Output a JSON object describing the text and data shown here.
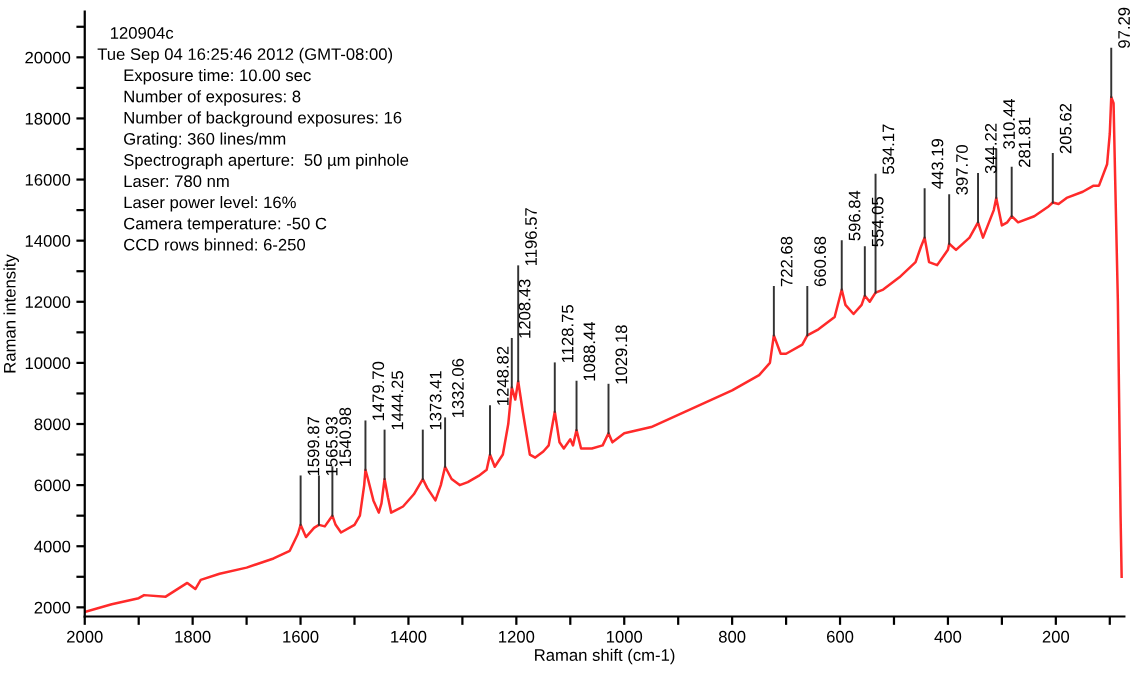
{
  "chart_data": {
    "type": "line",
    "xlabel": "Raman shift (cm-1)",
    "ylabel": "Raman intensity",
    "x": [
      2000,
      1950,
      1900,
      1890,
      1850,
      1810,
      1795,
      1785,
      1750,
      1700,
      1650,
      1620,
      1605,
      1599.87,
      1590,
      1575,
      1565.93,
      1555,
      1545,
      1540.98,
      1535,
      1525,
      1500,
      1490,
      1482,
      1479.7,
      1475,
      1465,
      1455,
      1450,
      1444.25,
      1438,
      1432,
      1410,
      1390,
      1373.41,
      1365,
      1350,
      1340,
      1332.06,
      1320,
      1305,
      1290,
      1270,
      1255,
      1248.82,
      1240,
      1225,
      1215,
      1208.43,
      1202,
      1196.57,
      1188,
      1175,
      1165,
      1150,
      1140,
      1128.75,
      1120,
      1112,
      1100,
      1095,
      1088.44,
      1080,
      1060,
      1040,
      1029.18,
      1022,
      1000,
      950,
      900,
      850,
      800,
      750,
      730,
      722.68,
      710,
      700,
      670,
      660.68,
      640,
      610,
      596.84,
      590,
      575,
      560,
      554.05,
      545,
      534.17,
      520,
      490,
      460,
      450,
      443.19,
      435,
      420,
      400,
      397.7,
      385,
      360,
      344.22,
      335,
      315,
      310.44,
      300,
      290,
      281.81,
      270,
      240,
      215,
      205.62,
      195,
      180,
      150,
      130,
      120,
      105,
      100,
      97.29,
      93,
      90,
      85,
      80,
      78
    ],
    "series": [
      {
        "color": "#ff2a2a",
        "values": [
          1850,
          2100,
          2300,
          2400,
          2350,
          2800,
          2600,
          2900,
          3100,
          3300,
          3600,
          3850,
          4400,
          4700,
          4300,
          4600,
          4700,
          4650,
          4900,
          5000,
          4700,
          4450,
          4700,
          5000,
          6000,
          6500,
          6200,
          5500,
          5100,
          5400,
          6200,
          5600,
          5100,
          5300,
          5700,
          6200,
          5900,
          5500,
          6000,
          6600,
          6200,
          6000,
          6100,
          6300,
          6500,
          7000,
          6600,
          7000,
          8000,
          9200,
          8800,
          9400,
          8400,
          7000,
          6900,
          7100,
          7300,
          8400,
          7400,
          7200,
          7500,
          7300,
          7800,
          7200,
          7200,
          7300,
          7700,
          7400,
          7700,
          7900,
          8300,
          8700,
          9100,
          9600,
          10000,
          10900,
          10300,
          10300,
          10600,
          10900,
          11100,
          11500,
          12400,
          11900,
          11600,
          11900,
          12200,
          12000,
          12300,
          12400,
          12800,
          13300,
          13800,
          14100,
          13300,
          13200,
          13700,
          13900,
          13700,
          14100,
          14600,
          14100,
          15000,
          15400,
          14500,
          14600,
          14800,
          14600,
          14800,
          15100,
          15250,
          15200,
          15400,
          15600,
          15800,
          15800,
          16500,
          17500,
          18700,
          18500,
          16000,
          12000,
          5000,
          3000
        ]
      }
    ],
    "xlim": [
      2000,
      73
    ],
    "ylim": [
      1700,
      21500
    ],
    "xticks": [
      2000,
      {
        "value": 1900,
        "label": null
      },
      1800,
      {
        "value": 1700,
        "label": null
      },
      1600,
      {
        "value": 1500,
        "label": null
      },
      1400,
      {
        "value": 1300,
        "label": null
      },
      1200,
      {
        "value": 1100,
        "label": null
      },
      1000,
      {
        "value": 900,
        "label": null
      },
      800,
      {
        "value": 700,
        "label": null
      },
      600,
      {
        "value": 500,
        "label": null
      },
      400,
      {
        "value": 300,
        "label": null
      },
      200,
      {
        "value": 100,
        "label": null
      }
    ],
    "yticks": [
      2000,
      {
        "value": 3000,
        "label": null
      },
      4000,
      {
        "value": 5000,
        "label": null
      },
      6000,
      {
        "value": 7000,
        "label": null
      },
      8000,
      {
        "value": 9000,
        "label": null
      },
      10000,
      {
        "value": 11000,
        "label": null
      },
      12000,
      {
        "value": 13000,
        "label": null
      },
      14000,
      {
        "value": 15000,
        "label": null
      },
      16000,
      {
        "value": 17000,
        "label": null
      },
      18000,
      {
        "value": 19000,
        "label": null
      },
      20000,
      {
        "value": 21000,
        "label": null
      }
    ],
    "grid": false,
    "legend": false,
    "marker": "none",
    "line_style": "solid",
    "annotations": [
      "120904c",
      "Tue Sep 04 16:25:46 2012 (GMT-08:00)",
      "Exposure time: 10.00 sec",
      "Number of exposures: 8",
      "Number of background exposures: 16",
      "Grating: 360 lines/mm",
      "Spectrograph aperture:  50 µm pinhole",
      "Laser: 780 nm",
      "Laser power level: 16%",
      "Camera temperature: -50 C",
      "CCD rows binned: 6-250",
      {
        "text": "1599.87",
        "x": 1599.87,
        "y": 4700
      },
      {
        "text": "1565.93",
        "x": 1565.93,
        "y": 4700
      },
      {
        "text": "1540.98",
        "x": 1540.98,
        "y": 5000
      },
      {
        "text": "1479.70",
        "x": 1479.7,
        "y": 6500
      },
      {
        "text": "1444.25",
        "x": 1444.25,
        "y": 6200
      },
      {
        "text": "1373.41",
        "x": 1373.41,
        "y": 6200
      },
      {
        "text": "1332.06",
        "x": 1332.06,
        "y": 6600
      },
      {
        "text": "1248.82",
        "x": 1248.82,
        "y": 7000
      },
      {
        "text": "1208.43",
        "x": 1208.43,
        "y": 9200
      },
      {
        "text": "1196.57",
        "x": 1196.57,
        "y": 9400
      },
      {
        "text": "1128.75",
        "x": 1128.75,
        "y": 8400
      },
      {
        "text": "1088.44",
        "x": 1088.44,
        "y": 7800
      },
      {
        "text": "1029.18",
        "x": 1029.18,
        "y": 7700
      },
      {
        "text": "722.68",
        "x": 722.68,
        "y": 10900
      },
      {
        "text": "660.68",
        "x": 660.68,
        "y": 10900
      },
      {
        "text": "596.84",
        "x": 596.84,
        "y": 12400
      },
      {
        "text": "554.05",
        "x": 554.05,
        "y": 12200
      },
      {
        "text": "534.17",
        "x": 534.17,
        "y": 12300
      },
      {
        "text": "443.19",
        "x": 443.19,
        "y": 14100
      },
      {
        "text": "397.70",
        "x": 397.7,
        "y": 13900
      },
      {
        "text": "344.22",
        "x": 344.22,
        "y": 14600
      },
      {
        "text": "310.44",
        "x": 310.44,
        "y": 15400
      },
      {
        "text": "281.81",
        "x": 281.81,
        "y": 14800
      },
      {
        "text": "205.62",
        "x": 205.62,
        "y": 15250
      },
      {
        "text": "97.29",
        "x": 97.29,
        "y": 18700
      }
    ]
  }
}
